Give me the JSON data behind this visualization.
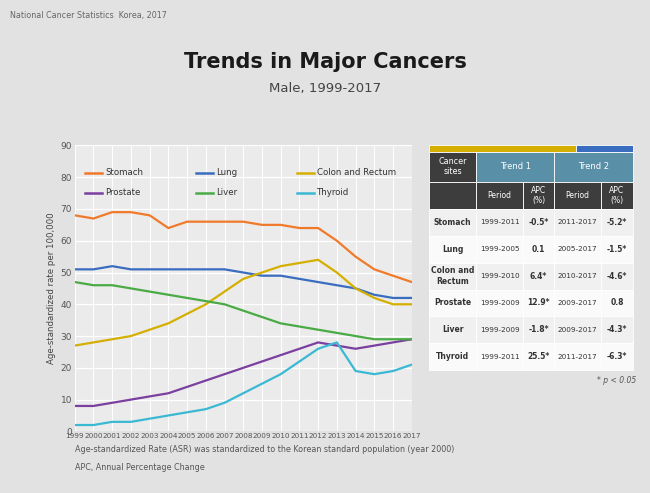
{
  "title": "Trends in Major Cancers",
  "subtitle": "Male, 1999-2017",
  "header_note": "National Cancer Statistics  Korea, 2017",
  "footer_note1": "Age-standardized Rate (ASR) was standardized to the Korean standard population (year 2000)",
  "footer_note2": "APC, Annual Percentage Change",
  "ylabel": "Age-standardized rate per 100,000",
  "years": [
    1999,
    2000,
    2001,
    2002,
    2003,
    2004,
    2005,
    2006,
    2007,
    2008,
    2009,
    2010,
    2011,
    2012,
    2013,
    2014,
    2015,
    2016,
    2017
  ],
  "series": {
    "Stomach": {
      "color": "#f07a2a",
      "values": [
        68,
        67,
        69,
        69,
        68,
        64,
        66,
        66,
        66,
        66,
        65,
        65,
        64,
        64,
        60,
        55,
        51,
        49,
        47
      ]
    },
    "Lung": {
      "color": "#3a6dbf",
      "values": [
        51,
        51,
        52,
        51,
        51,
        51,
        51,
        51,
        51,
        50,
        49,
        49,
        48,
        47,
        46,
        45,
        43,
        42,
        42
      ]
    },
    "Colon and Rectum": {
      "color": "#d4af00",
      "values": [
        27,
        28,
        29,
        30,
        32,
        34,
        37,
        40,
        44,
        48,
        50,
        52,
        53,
        54,
        50,
        45,
        42,
        40,
        40
      ]
    },
    "Prostate": {
      "color": "#7b3fa0",
      "values": [
        8,
        8,
        9,
        10,
        11,
        12,
        14,
        16,
        18,
        20,
        22,
        24,
        26,
        28,
        27,
        26,
        27,
        28,
        29
      ]
    },
    "Liver": {
      "color": "#4aaa45",
      "values": [
        47,
        46,
        46,
        45,
        44,
        43,
        42,
        41,
        40,
        38,
        36,
        34,
        33,
        32,
        31,
        30,
        29,
        29,
        29
      ]
    },
    "Thyroid": {
      "color": "#3ab8d4",
      "values": [
        2,
        2,
        3,
        3,
        4,
        5,
        6,
        7,
        9,
        12,
        15,
        18,
        22,
        26,
        28,
        19,
        18,
        19,
        21
      ]
    }
  },
  "legend": {
    "row1": [
      "Stomach",
      "Lung",
      "Colon and Rectum"
    ],
    "row2": [
      "Prostate",
      "Liver",
      "Thyroid"
    ]
  },
  "table": {
    "header_bg": "#3d3d3d",
    "trend_bg": "#5a8fa8",
    "top_bar_color": "#d4af00",
    "top_bar2_color": "#3a6dbf",
    "rows": [
      {
        "site": "Stomach",
        "p1": "1999-2011",
        "apc1": "-0.5*",
        "p2": "2011-2017",
        "apc2": "-5.2*"
      },
      {
        "site": "Lung",
        "p1": "1999-2005",
        "apc1": "0.1",
        "p2": "2005-2017",
        "apc2": "-1.5*"
      },
      {
        "site": "Colon and\nRectum",
        "p1": "1999-2010",
        "apc1": "6.4*",
        "p2": "2010-2017",
        "apc2": "-4.6*"
      },
      {
        "site": "Prostate",
        "p1": "1999-2009",
        "apc1": "12.9*",
        "p2": "2009-2017",
        "apc2": "0.8"
      },
      {
        "site": "Liver",
        "p1": "1999-2009",
        "apc1": "-1.8*",
        "p2": "2009-2017",
        "apc2": "-4.3*"
      },
      {
        "site": "Thyroid",
        "p1": "1999-2011",
        "apc1": "25.5*",
        "p2": "2011-2017",
        "apc2": "-6.3*"
      }
    ]
  },
  "bg_color": "#e2e2e2",
  "plot_bg_color": "#ebebeb",
  "ylim": [
    0,
    90
  ],
  "yticks": [
    0,
    10,
    20,
    30,
    40,
    50,
    60,
    70,
    80,
    90
  ]
}
